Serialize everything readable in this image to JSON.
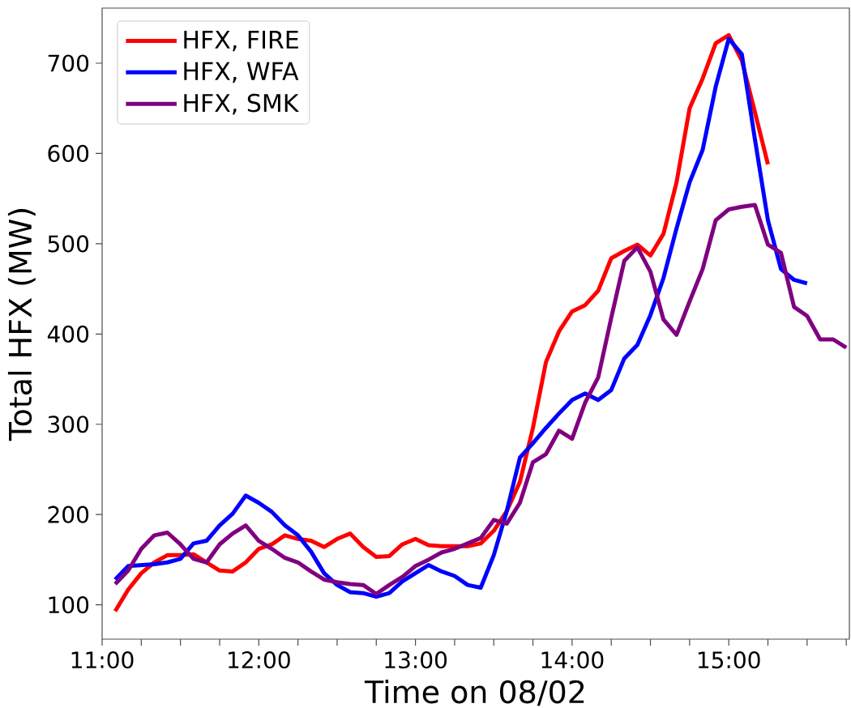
{
  "chart_data": {
    "type": "line",
    "xlabel": "Time on 08/02",
    "ylabel": "Total HFX (MW)",
    "x": [
      11.0833,
      11.1667,
      11.25,
      11.3333,
      11.4167,
      11.5,
      11.5833,
      11.6667,
      11.75,
      11.8333,
      11.9167,
      12,
      12.0833,
      12.1667,
      12.25,
      12.3333,
      12.4167,
      12.5,
      12.5833,
      12.6667,
      12.75,
      12.8333,
      12.9167,
      13,
      13.0833,
      13.1667,
      13.25,
      13.3333,
      13.4167,
      13.5,
      13.5833,
      13.6667,
      13.75,
      13.8333,
      13.9167,
      14,
      14.0833,
      14.1667,
      14.25,
      14.3333,
      14.4167,
      14.5,
      14.5833,
      14.6667,
      14.75,
      14.8333,
      14.9167,
      15,
      15.0833,
      15.1667,
      15.25,
      15.3333,
      15.4167,
      15.5,
      15.5833,
      15.6667,
      15.75
    ],
    "series": [
      {
        "name": "HFX, FIRE",
        "color": "#ff0000",
        "values": [
          93,
          117,
          135,
          147,
          155,
          155,
          156,
          147,
          138,
          137,
          147,
          162,
          167,
          177,
          173,
          171,
          164,
          173,
          179,
          164,
          153,
          154,
          167,
          173,
          166,
          165,
          165,
          165,
          168,
          182,
          204,
          236,
          296,
          369,
          403,
          425,
          432,
          448,
          484,
          492,
          499,
          487,
          511,
          568,
          650,
          683,
          722,
          731,
          703,
          646,
          588,
          null,
          null,
          null,
          null,
          null,
          null
        ]
      },
      {
        "name": "HFX, WFA",
        "color": "#0000ff",
        "values": [
          128,
          143,
          144,
          145,
          147,
          151,
          168,
          171,
          188,
          201,
          221,
          213,
          203,
          188,
          177,
          159,
          135,
          122,
          114,
          113,
          109,
          113,
          126,
          135,
          144,
          137,
          132,
          122,
          119,
          155,
          204,
          263,
          279,
          296,
          312,
          327,
          334,
          327,
          338,
          373,
          388,
          421,
          462,
          517,
          568,
          604,
          674,
          727,
          710,
          616,
          526,
          472,
          460,
          456,
          null,
          null,
          null
        ]
      },
      {
        "name": "HFX, SMK",
        "color": "#800080",
        "values": [
          123,
          138,
          162,
          177,
          180,
          167,
          151,
          147,
          167,
          179,
          188,
          171,
          162,
          152,
          147,
          137,
          128,
          125,
          123,
          122,
          112,
          122,
          131,
          143,
          150,
          158,
          162,
          168,
          174,
          194,
          190,
          213,
          258,
          267,
          293,
          284,
          324,
          352,
          418,
          481,
          496,
          469,
          416,
          399,
          436,
          472,
          526,
          538,
          541,
          543,
          499,
          490,
          430,
          420,
          394,
          394,
          385
        ]
      }
    ],
    "xlim": [
      11,
      15.77
    ],
    "ylim": [
      62,
      761
    ],
    "xticks": [
      {
        "value": 11,
        "label": "11:00"
      },
      {
        "value": 11.25,
        "label": null
      },
      {
        "value": 11.5,
        "label": null
      },
      {
        "value": 11.75,
        "label": null
      },
      {
        "value": 12,
        "label": "12:00"
      },
      {
        "value": 12.25,
        "label": null
      },
      {
        "value": 12.5,
        "label": null
      },
      {
        "value": 12.75,
        "label": null
      },
      {
        "value": 13,
        "label": "13:00"
      },
      {
        "value": 13.25,
        "label": null
      },
      {
        "value": 13.5,
        "label": null
      },
      {
        "value": 13.75,
        "label": null
      },
      {
        "value": 14,
        "label": "14:00"
      },
      {
        "value": 14.25,
        "label": null
      },
      {
        "value": 14.5,
        "label": null
      },
      {
        "value": 14.75,
        "label": null
      },
      {
        "value": 15,
        "label": "15:00"
      },
      {
        "value": 15.25,
        "label": null
      },
      {
        "value": 15.5,
        "label": null
      },
      {
        "value": 15.75,
        "label": null
      }
    ],
    "yticks": [
      100,
      200,
      300,
      400,
      500,
      600,
      700
    ],
    "legend": "top left",
    "marker": "none",
    "line_style": "solid",
    "grid": false
  }
}
